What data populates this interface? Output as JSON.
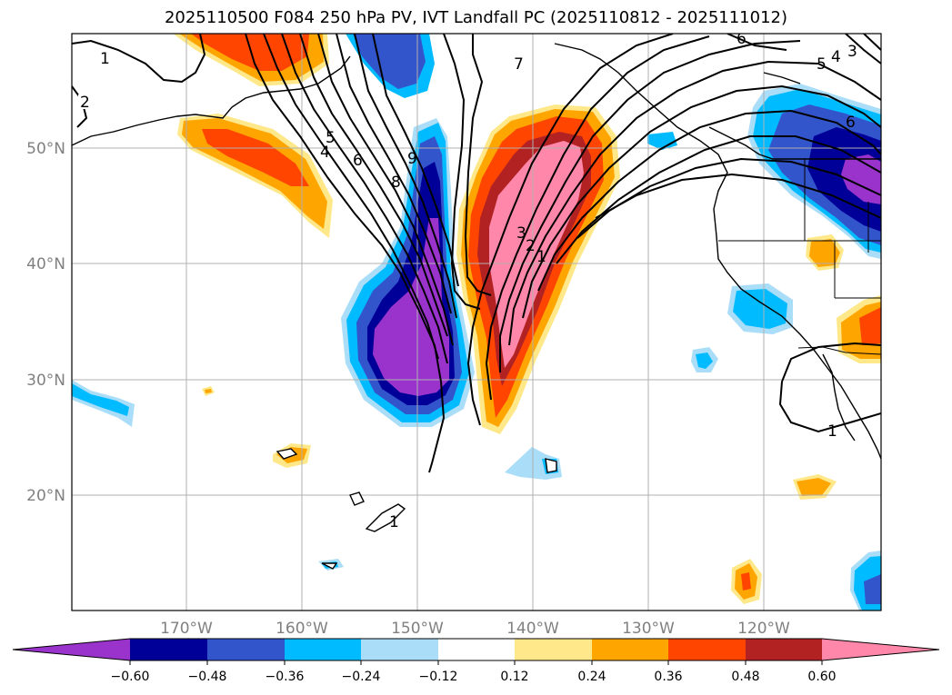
{
  "title": "2025110500 F084 250 hPa PV, IVT Landfall PC (2025110812 - 2025111012)",
  "lat_labels": [
    "50°N",
    "40°N",
    "30°N",
    "20°N"
  ],
  "lon_labels": [
    "170°W",
    "160°W",
    "150°W",
    "140°W",
    "130°W",
    "120°W"
  ],
  "colorbar": {
    "colors": [
      "#9933cc",
      "#000099",
      "#3355cc",
      "#00bbff",
      "#aaddf8",
      "#ffffff",
      "#ffe88a",
      "#ffa500",
      "#ff4500",
      "#b22222",
      "#ff88aa"
    ],
    "tick_labels": [
      "−0.60",
      "−0.48",
      "−0.36",
      "−0.24",
      "−0.12",
      "0.12",
      "0.24",
      "0.36",
      "0.48",
      "0.60"
    ]
  },
  "contour_labels": [
    "1",
    "2",
    "5",
    "4",
    "6",
    "8",
    "9",
    "7",
    "6",
    "5",
    "4",
    "3",
    "6",
    "3",
    "2",
    "1",
    "1",
    "1"
  ]
}
